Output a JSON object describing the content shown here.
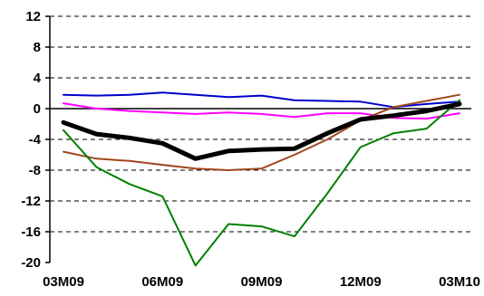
{
  "chart_data": {
    "type": "line",
    "title": "",
    "xlabel": "",
    "ylabel": "",
    "x": [
      "03M09",
      "04M09",
      "05M09",
      "06M09",
      "07M09",
      "08M09",
      "09M09",
      "10M09",
      "11M09",
      "12M09",
      "01M10",
      "02M10",
      "03M10"
    ],
    "x_tick_labels": [
      "03M09",
      "06M09",
      "09M09",
      "12M09",
      "03M10"
    ],
    "x_tick_index": [
      0,
      3,
      6,
      9,
      12
    ],
    "ylim": [
      -20,
      12
    ],
    "y_ticks": [
      12,
      8,
      4,
      0,
      -4,
      -8,
      -12,
      -16,
      -20
    ],
    "grid": "horizontal dashed",
    "legend": "none",
    "series": [
      {
        "color": "#0000CC",
        "width": 2,
        "values": [
          1.8,
          1.7,
          1.8,
          2.1,
          1.8,
          1.5,
          1.7,
          1.1,
          1.0,
          0.9,
          0.2,
          0.6,
          0.9
        ]
      },
      {
        "color": "#FF00FF",
        "width": 2,
        "values": [
          0.7,
          0.0,
          -0.3,
          -0.5,
          -0.7,
          -0.5,
          -0.7,
          -1.1,
          -0.6,
          -0.6,
          -1.2,
          -1.3,
          -0.6
        ]
      },
      {
        "color": "#A0461E",
        "width": 2,
        "values": [
          -5.6,
          -6.5,
          -6.8,
          -7.3,
          -7.8,
          -8.0,
          -7.8,
          -6.0,
          -4.0,
          -1.5,
          0.2,
          1.0,
          1.8
        ]
      },
      {
        "color": "#008000",
        "width": 2,
        "values": [
          -2.8,
          -7.6,
          -9.8,
          -11.4,
          -20.4,
          -15.0,
          -15.3,
          -16.6,
          -11.0,
          -5.0,
          -3.2,
          -2.6,
          1.1
        ]
      },
      {
        "color": "#000000",
        "width": 5,
        "values": [
          -1.8,
          -3.3,
          -3.8,
          -4.5,
          -6.5,
          -5.5,
          -5.3,
          -5.2,
          -3.2,
          -1.4,
          -0.9,
          -0.3,
          0.6
        ]
      }
    ]
  }
}
